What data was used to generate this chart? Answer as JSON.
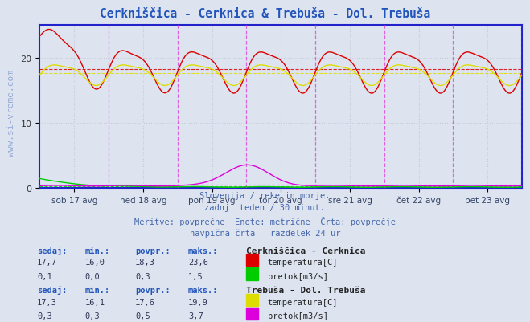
{
  "title": "Cerkniščica - Cerknica & Trebuša - Dol. Trebuša",
  "title_color": "#2255bb",
  "background_color": "#dde4f0",
  "plot_bg_color": "#dde4f0",
  "xlabel_ticks": [
    "sob 17 avg",
    "ned 18 avg",
    "pon 19 avg",
    "tor 20 avg",
    "sre 21 avg",
    "čet 22 avg",
    "pet 23 avg"
  ],
  "ylabel_ticks": [
    0,
    10,
    20
  ],
  "ylim": [
    0,
    25
  ],
  "xlim": [
    0,
    336
  ],
  "subtitle_lines": [
    "Slovenija / reke in morje.",
    "zadnji teden / 30 minut.",
    "Meritve: povprečne  Enote: metrične  Črta: povprečje",
    "navpična črta - razdelek 24 ur"
  ],
  "legend1_title": "Cerkniščica - Cerknica",
  "legend2_title": "Trebuša - Dol. Trebuša",
  "legend1_items": [
    {
      "label": "temperatura[C]",
      "color": "#dd0000"
    },
    {
      "label": "pretok[m3/s]",
      "color": "#00cc00"
    }
  ],
  "legend2_items": [
    {
      "label": "temperatura[C]",
      "color": "#dddd00"
    },
    {
      "label": "pretok[m3/s]",
      "color": "#dd00dd"
    }
  ],
  "stats1": {
    "headers": [
      "sedaj:",
      "min.:",
      "povpr.:",
      "maks.:"
    ],
    "row1": [
      "17,7",
      "16,0",
      "18,3",
      "23,6"
    ],
    "row2": [
      "0,1",
      "0,0",
      "0,3",
      "1,5"
    ]
  },
  "stats2": {
    "headers": [
      "sedaj:",
      "min.:",
      "povpr.:",
      "maks.:"
    ],
    "row1": [
      "17,3",
      "16,1",
      "17,6",
      "19,9"
    ],
    "row2": [
      "0,3",
      "0,3",
      "0,5",
      "3,7"
    ]
  },
  "avg1_temp": 18.3,
  "avg1_flow": 0.3,
  "avg2_temp": 17.6,
  "avg2_flow": 0.5,
  "n_points": 337,
  "vertical_lines_x": [
    48,
    96,
    144,
    192,
    240,
    288,
    336
  ],
  "grid_color": "#c8c8d8",
  "vline_color": "#dd55dd",
  "axis_color": "#2222cc",
  "watermark": "www.si-vreme.com",
  "tick_positions": [
    24,
    72,
    120,
    168,
    216,
    264,
    312
  ]
}
